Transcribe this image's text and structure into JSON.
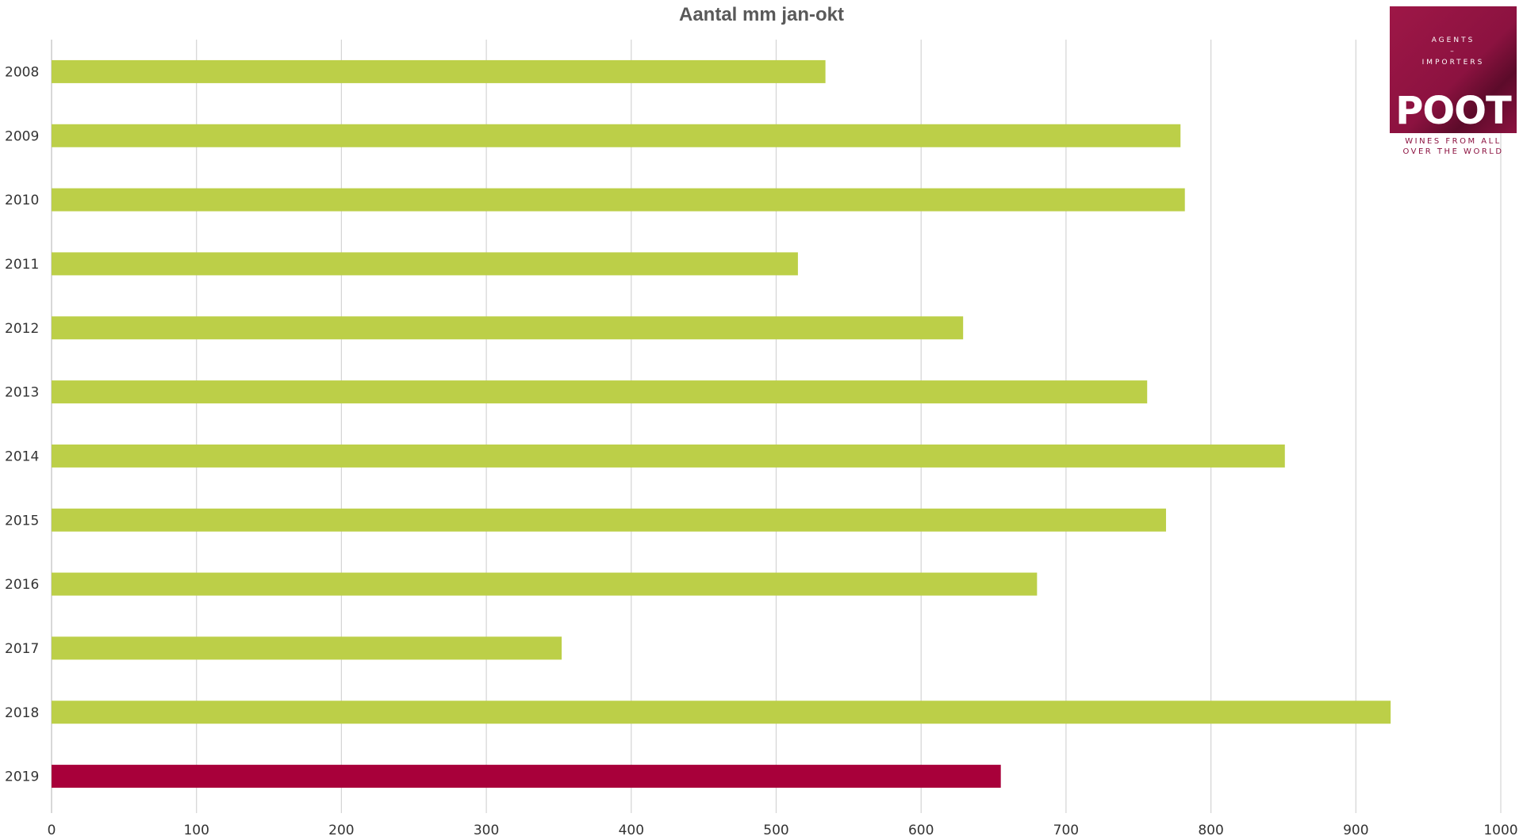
{
  "chart_data": {
    "type": "bar",
    "orientation": "horizontal",
    "title": "Aantal mm jan-okt",
    "xlabel": "",
    "ylabel": "",
    "categories": [
      "2008",
      "2009",
      "2010",
      "2011",
      "2012",
      "2013",
      "2014",
      "2015",
      "2016",
      "2017",
      "2018",
      "2019"
    ],
    "series": [
      {
        "values": [
          534,
          779,
          782,
          515,
          629,
          756,
          851,
          769,
          680,
          352,
          924,
          655
        ]
      }
    ],
    "highlight": {
      "category": "2019",
      "color": "#a8003a"
    },
    "bar_color": "#bccf48",
    "xlim": [
      0,
      1000
    ],
    "xticks": [
      0,
      100,
      200,
      300,
      400,
      500,
      600,
      700,
      800,
      900,
      1000
    ],
    "grid": true,
    "legend": "none"
  },
  "logo": {
    "line1": "AGENTS",
    "line2": "–",
    "line3": "IMPORTERS",
    "name": "POOT",
    "tagline1": "WINES FROM ALL",
    "tagline2": "OVER THE WORLD",
    "color": "#8c1240"
  }
}
